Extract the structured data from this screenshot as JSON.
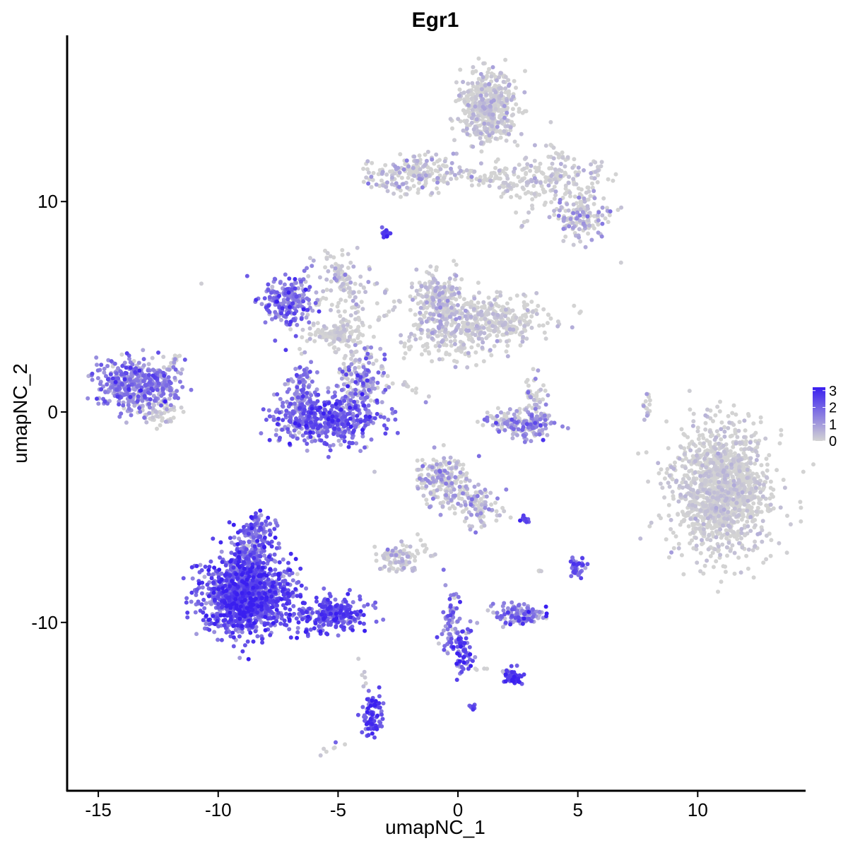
{
  "chart_data": {
    "type": "scatter",
    "title": "Egr1",
    "xlabel": "umapNC_1",
    "ylabel": "umapNC_2",
    "xlim": [
      -16.3,
      14.5
    ],
    "ylim": [
      -18.0,
      17.9
    ],
    "x_ticks": [
      -15,
      -10,
      -5,
      0,
      5,
      10
    ],
    "y_ticks": [
      -10,
      0,
      10
    ],
    "x_tick_labels": [
      "-15",
      "-10",
      "-5",
      "0",
      "5",
      "10"
    ],
    "y_tick_labels": [
      "-10",
      "0",
      "10"
    ],
    "grid": false,
    "legend": {
      "placement": "right",
      "type": "colorbar",
      "low_color": "#d3d3d3",
      "high_color": "#3a1ff0",
      "range": [
        0,
        3.2
      ],
      "ticks": [
        3,
        2,
        1,
        0
      ],
      "tick_labels": [
        "3",
        "2",
        "1",
        "0"
      ]
    },
    "point_color_low": "#d3d3d3",
    "point_color_high": "#3a1ff0",
    "clusters": [
      {
        "id": "c1",
        "cx": 11.0,
        "cy": -3.7,
        "sx": 1.0,
        "sy": 1.5,
        "n": 1400,
        "expr_mean": 0.08,
        "expr_spread": 0.25
      },
      {
        "id": "c2",
        "cx": 1.3,
        "cy": 14.5,
        "sx": 0.6,
        "sy": 0.8,
        "n": 500,
        "expr_mean": 0.15,
        "expr_spread": 0.35
      },
      {
        "id": "c3",
        "cx": 3.5,
        "cy": 11.0,
        "sx": 1.2,
        "sy": 0.6,
        "n": 180,
        "expr_mean": 0.1,
        "expr_spread": 0.3
      },
      {
        "id": "c4",
        "cx": 5.2,
        "cy": 9.3,
        "sx": 0.6,
        "sy": 0.5,
        "n": 150,
        "expr_mean": 0.6,
        "expr_spread": 0.6
      },
      {
        "id": "c5",
        "cx": -2.0,
        "cy": 11.3,
        "sx": 0.9,
        "sy": 0.45,
        "n": 180,
        "expr_mean": 0.4,
        "expr_spread": 0.5
      },
      {
        "id": "c6",
        "cx": 1.0,
        "cy": 11.2,
        "sx": 1.0,
        "sy": 0.25,
        "n": 60,
        "expr_mean": 0.15,
        "expr_spread": 0.3
      },
      {
        "id": "c7",
        "cx": -3.0,
        "cy": 8.5,
        "sx": 0.1,
        "sy": 0.1,
        "n": 20,
        "expr_mean": 2.5,
        "expr_spread": 0.4
      },
      {
        "id": "c8",
        "cx": -7.1,
        "cy": 5.2,
        "sx": 0.5,
        "sy": 0.6,
        "n": 220,
        "expr_mean": 1.5,
        "expr_spread": 0.7
      },
      {
        "id": "c9",
        "cx": -5.2,
        "cy": 3.7,
        "sx": 0.6,
        "sy": 0.3,
        "n": 120,
        "expr_mean": 0.1,
        "expr_spread": 0.2
      },
      {
        "id": "c10",
        "cx": -5.0,
        "cy": 6.0,
        "sx": 0.9,
        "sy": 0.6,
        "n": 60,
        "expr_mean": 0.3,
        "expr_spread": 0.3
      },
      {
        "id": "c11",
        "cx": -4.5,
        "cy": 4.8,
        "sx": 0.3,
        "sy": 1.6,
        "n": 50,
        "expr_mean": 0.1,
        "expr_spread": 0.2
      },
      {
        "id": "c12",
        "cx": -0.8,
        "cy": 5.3,
        "sx": 0.5,
        "sy": 0.7,
        "n": 250,
        "expr_mean": 0.35,
        "expr_spread": 0.4
      },
      {
        "id": "c13",
        "cx": 1.5,
        "cy": 4.4,
        "sx": 1.2,
        "sy": 0.5,
        "n": 300,
        "expr_mean": 0.15,
        "expr_spread": 0.3
      },
      {
        "id": "c14",
        "cx": -0.2,
        "cy": 3.5,
        "sx": 1.0,
        "sy": 0.6,
        "n": 150,
        "expr_mean": 0.2,
        "expr_spread": 0.3
      },
      {
        "id": "c15",
        "cx": -13.4,
        "cy": 1.3,
        "sx": 0.8,
        "sy": 0.6,
        "n": 450,
        "expr_mean": 1.4,
        "expr_spread": 0.7
      },
      {
        "id": "c16",
        "cx": -12.5,
        "cy": 0.0,
        "sx": 0.5,
        "sy": 0.3,
        "n": 60,
        "expr_mean": 0.2,
        "expr_spread": 0.3
      },
      {
        "id": "c17",
        "cx": -5.5,
        "cy": -0.3,
        "sx": 1.1,
        "sy": 0.6,
        "n": 500,
        "expr_mean": 1.8,
        "expr_spread": 0.7
      },
      {
        "id": "c18",
        "cx": -4.0,
        "cy": 1.5,
        "sx": 0.4,
        "sy": 0.9,
        "n": 150,
        "expr_mean": 1.0,
        "expr_spread": 0.8
      },
      {
        "id": "c19",
        "cx": -6.5,
        "cy": 1.2,
        "sx": 0.25,
        "sy": 0.7,
        "n": 100,
        "expr_mean": 1.0,
        "expr_spread": 0.8
      },
      {
        "id": "c20",
        "cx": 2.8,
        "cy": -0.7,
        "sx": 0.7,
        "sy": 0.3,
        "n": 120,
        "expr_mean": 1.0,
        "expr_spread": 0.8
      },
      {
        "id": "c21",
        "cx": 3.2,
        "cy": 0.5,
        "sx": 0.25,
        "sy": 0.6,
        "n": 60,
        "expr_mean": 0.5,
        "expr_spread": 0.6
      },
      {
        "id": "c22",
        "cx": 2.1,
        "cy": -0.3,
        "sx": 0.5,
        "sy": 0.25,
        "n": 40,
        "expr_mean": 0.6,
        "expr_spread": 0.6
      },
      {
        "id": "c23",
        "cx": 7.9,
        "cy": 0.3,
        "sx": 0.08,
        "sy": 0.4,
        "n": 15,
        "expr_mean": 0.6,
        "expr_spread": 0.5
      },
      {
        "id": "c24",
        "cx": -0.6,
        "cy": -3.3,
        "sx": 0.6,
        "sy": 0.6,
        "n": 200,
        "expr_mean": 0.5,
        "expr_spread": 0.6
      },
      {
        "id": "c25",
        "cx": 0.8,
        "cy": -4.5,
        "sx": 0.5,
        "sy": 0.5,
        "n": 80,
        "expr_mean": 0.6,
        "expr_spread": 0.6
      },
      {
        "id": "c26",
        "cx": -8.8,
        "cy": -8.7,
        "sx": 0.9,
        "sy": 0.9,
        "n": 1300,
        "expr_mean": 2.1,
        "expr_spread": 0.7
      },
      {
        "id": "c27",
        "cx": -8.5,
        "cy": -6.2,
        "sx": 0.4,
        "sy": 0.6,
        "n": 180,
        "expr_mean": 1.7,
        "expr_spread": 0.8
      },
      {
        "id": "c28",
        "cx": -5.2,
        "cy": -9.6,
        "sx": 0.7,
        "sy": 0.4,
        "n": 220,
        "expr_mean": 2.3,
        "expr_spread": 0.6
      },
      {
        "id": "c29",
        "cx": -3.6,
        "cy": -14.4,
        "sx": 0.2,
        "sy": 0.5,
        "n": 90,
        "expr_mean": 2.3,
        "expr_spread": 0.6
      },
      {
        "id": "c30",
        "cx": -2.5,
        "cy": -6.9,
        "sx": 0.45,
        "sy": 0.3,
        "n": 90,
        "expr_mean": 0.3,
        "expr_spread": 0.4
      },
      {
        "id": "c31",
        "cx": 2.5,
        "cy": -9.6,
        "sx": 0.5,
        "sy": 0.25,
        "n": 120,
        "expr_mean": 1.4,
        "expr_spread": 0.8
      },
      {
        "id": "c32",
        "cx": 0.2,
        "cy": -11.3,
        "sx": 0.2,
        "sy": 0.6,
        "n": 80,
        "expr_mean": 2.1,
        "expr_spread": 0.7
      },
      {
        "id": "c33",
        "cx": -0.3,
        "cy": -10.0,
        "sx": 0.2,
        "sy": 0.8,
        "n": 60,
        "expr_mean": 1.5,
        "expr_spread": 0.8
      },
      {
        "id": "c34",
        "cx": 2.3,
        "cy": -12.6,
        "sx": 0.2,
        "sy": 0.2,
        "n": 50,
        "expr_mean": 2.5,
        "expr_spread": 0.4
      },
      {
        "id": "c35",
        "cx": 5.0,
        "cy": -7.4,
        "sx": 0.2,
        "sy": 0.3,
        "n": 40,
        "expr_mean": 2.0,
        "expr_spread": 0.6
      },
      {
        "id": "c36",
        "cx": 2.8,
        "cy": -5.1,
        "sx": 0.1,
        "sy": 0.08,
        "n": 12,
        "expr_mean": 2.5,
        "expr_spread": 0.4
      },
      {
        "id": "c37",
        "cx": 0.6,
        "cy": -14.0,
        "sx": 0.08,
        "sy": 0.08,
        "n": 10,
        "expr_mean": 2.2,
        "expr_spread": 0.5
      },
      {
        "id": "c38",
        "cx": -4.9,
        "cy": 6.4,
        "sx": 0.2,
        "sy": 0.2,
        "n": 15,
        "expr_mean": 0.7,
        "expr_spread": 0.6
      }
    ],
    "connectors": [
      {
        "from": [
          -12.3,
          1.7
        ],
        "to": [
          -11.6,
          2.8
        ],
        "n": 12
      },
      {
        "from": [
          -4.7,
          2.6
        ],
        "to": [
          -4.5,
          0.8
        ],
        "n": 15
      },
      {
        "from": [
          -5.5,
          7.6
        ],
        "to": [
          -4.0,
          4.2
        ],
        "n": 25
      },
      {
        "from": [
          -3.9,
          3.8
        ],
        "to": [
          -2.4,
          5.3
        ],
        "n": 12
      },
      {
        "from": [
          -2.4,
          3.0
        ],
        "to": [
          -1.1,
          4.5
        ],
        "n": 10
      },
      {
        "from": [
          -2.5,
          1.5
        ],
        "to": [
          -1.3,
          0.7
        ],
        "n": 12
      },
      {
        "from": [
          -3.2,
          2.2
        ],
        "to": [
          -2.7,
          1.1
        ],
        "n": 8
      },
      {
        "from": [
          -0.5,
          -1.6
        ],
        "to": [
          1.2,
          -5.5
        ],
        "n": 20
      },
      {
        "from": [
          -0.9,
          -7.0
        ],
        "to": [
          -1.8,
          -5.8
        ],
        "n": 8
      },
      {
        "from": [
          -5.8,
          -16.3
        ],
        "to": [
          -4.8,
          -15.7
        ],
        "n": 6
      },
      {
        "from": [
          -4.0,
          -11.8
        ],
        "to": [
          -3.9,
          -13.0
        ],
        "n": 5
      },
      {
        "from": [
          0.5,
          -12.1
        ],
        "to": [
          2.3,
          -12.4
        ],
        "n": 12
      },
      {
        "from": [
          3.3,
          -7.6
        ],
        "to": [
          3.5,
          -7.5
        ],
        "n": 4
      },
      {
        "from": [
          2.7,
          8.7
        ],
        "to": [
          3.3,
          10.5
        ],
        "n": 10
      },
      {
        "from": [
          5.3,
          10.4
        ],
        "to": [
          6.0,
          11.9
        ],
        "n": 14
      },
      {
        "from": [
          3.6,
          12.8
        ],
        "to": [
          4.9,
          11.7
        ],
        "n": 12
      }
    ],
    "singletons": [
      {
        "x": -10.7,
        "y": 6.1,
        "v": 0.1
      },
      {
        "x": 6.8,
        "y": 7.1,
        "v": 0.1
      },
      {
        "x": 5.1,
        "y": 8.1,
        "v": 0.1
      },
      {
        "x": -5.1,
        "y": -15.7,
        "v": 2.0
      },
      {
        "x": -4.0,
        "y": -12.5,
        "v": 0.1
      },
      {
        "x": -0.8,
        "y": -11.0,
        "v": 0.2
      },
      {
        "x": -1.8,
        "y": -7.5,
        "v": 0.2
      },
      {
        "x": -0.6,
        "y": -7.5,
        "v": 1.8
      }
    ]
  }
}
